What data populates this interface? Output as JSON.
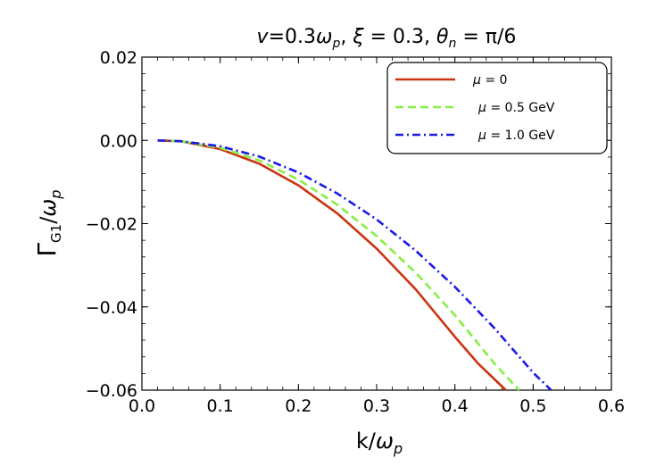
{
  "chart_data": {
    "type": "line",
    "title": "v=0.3ω_p, ξ = 0.3, θ_n = π/6",
    "title_parts": {
      "v": "v",
      "eq1": "=0.3",
      "omega": "ω",
      "p": "p",
      "sep1": ", ",
      "xi": "ξ",
      "eq2": " = 0.3, ",
      "theta": "θ",
      "n": "n",
      "eq3": " = π/6"
    },
    "xlabel": "k/ω_p",
    "xlabel_parts": {
      "k": "k/",
      "omega": "ω",
      "p": "p"
    },
    "ylabel": "Γ_G1/ω_p",
    "ylabel_parts": {
      "gamma": "Γ",
      "sub": "G1",
      "slash": "/",
      "omega": "ω",
      "p": "p"
    },
    "xlim": [
      0.0,
      0.6
    ],
    "ylim": [
      -0.06,
      0.02
    ],
    "xticks": [
      0.0,
      0.1,
      0.2,
      0.3,
      0.4,
      0.5,
      0.6
    ],
    "xtick_labels": [
      "0.0",
      "0.1",
      "0.2",
      "0.3",
      "0.4",
      "0.5",
      "0.6"
    ],
    "yticks": [
      0.02,
      0.0,
      -0.02,
      -0.04,
      -0.06
    ],
    "ytick_labels": [
      "0.02",
      "0.00",
      "−0.02",
      "−0.04",
      "−0.06"
    ],
    "grid": false,
    "legend_position": "top-right",
    "series": [
      {
        "name": "μ = 0",
        "label_parts": {
          "mu": "μ",
          "rest": " = 0"
        },
        "color": "#cc3311",
        "style": "solid",
        "x": [
          0.02,
          0.05,
          0.1,
          0.15,
          0.2,
          0.25,
          0.3,
          0.35,
          0.4,
          0.43,
          0.465
        ],
        "y": [
          0.0,
          -0.0002,
          -0.0021,
          -0.0056,
          -0.0108,
          -0.0176,
          -0.026,
          -0.0358,
          -0.0472,
          -0.0537,
          -0.06
        ]
      },
      {
        "name": "μ = 0.5 GeV",
        "label_parts": {
          "mu": "μ",
          "rest": " = 0.5 GeV"
        },
        "color": "#88ee44",
        "style": "dashed",
        "x": [
          0.02,
          0.05,
          0.1,
          0.15,
          0.2,
          0.25,
          0.3,
          0.35,
          0.4,
          0.45,
          0.482
        ],
        "y": [
          0.0,
          -0.0002,
          -0.0018,
          -0.0048,
          -0.0094,
          -0.0155,
          -0.023,
          -0.0318,
          -0.042,
          -0.0535,
          -0.06
        ]
      },
      {
        "name": "μ = 1.0 GeV",
        "label_parts": {
          "mu": "μ",
          "rest": " = 1.0 GeV"
        },
        "color": "#1a1ae6",
        "style": "dashdot",
        "x": [
          0.02,
          0.05,
          0.1,
          0.15,
          0.2,
          0.25,
          0.3,
          0.35,
          0.4,
          0.45,
          0.5,
          0.523
        ],
        "y": [
          0.0,
          -0.0002,
          -0.0014,
          -0.0039,
          -0.0077,
          -0.0128,
          -0.019,
          -0.0265,
          -0.0352,
          -0.045,
          -0.0558,
          -0.06
        ]
      }
    ]
  }
}
